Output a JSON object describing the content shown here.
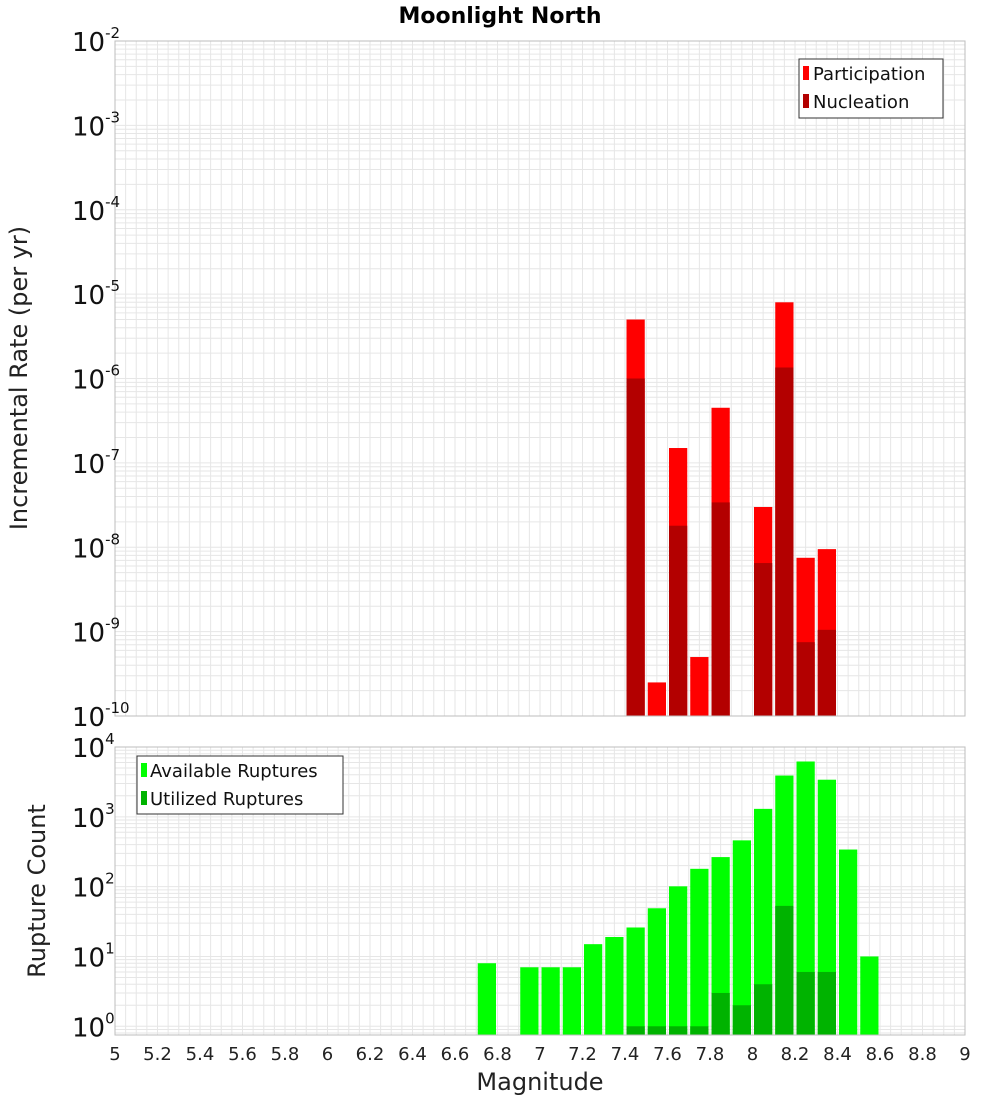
{
  "title": "Moonlight North",
  "xlabel": "Magnitude",
  "colors": {
    "participation": "#ff0000",
    "nucleation": "#b30000",
    "available": "#00ff00",
    "utilized": "#00b300",
    "grid": "#e6e6e6",
    "frame": "#bdbdbd"
  },
  "chart_data": [
    {
      "type": "bar",
      "ylabel": "Incremental Rate (per yr)",
      "yscale": "log",
      "ylim": [
        1e-10,
        0.01
      ],
      "xlim": [
        5,
        9
      ],
      "legend": "top-right",
      "grid": true,
      "bin_width": 0.1,
      "series": [
        {
          "name": "Participation",
          "color": "#ff0000",
          "x": [
            7.45,
            7.55,
            7.65,
            7.75,
            7.85,
            8.05,
            8.15,
            8.25,
            8.35
          ],
          "values": [
            5e-06,
            2.5e-10,
            1.5e-07,
            5e-10,
            4.5e-07,
            3e-08,
            8e-06,
            7.5e-09,
            9.5e-09
          ]
        },
        {
          "name": "Nucleation",
          "color": "#b30000",
          "x": [
            7.45,
            7.65,
            7.85,
            8.05,
            8.15,
            8.25,
            8.35
          ],
          "values": [
            1e-06,
            1.8e-08,
            3.4e-08,
            6.5e-09,
            1.35e-06,
            7.5e-10,
            1.05e-09
          ]
        }
      ]
    },
    {
      "type": "bar",
      "ylabel": "Rupture Count",
      "yscale": "log",
      "ylim": [
        0.75,
        10000
      ],
      "xlim": [
        5,
        9
      ],
      "legend": "top-left",
      "grid": true,
      "bin_width": 0.1,
      "series": [
        {
          "name": "Available Ruptures",
          "color": "#00ff00",
          "x": [
            6.75,
            6.95,
            7.05,
            7.15,
            7.25,
            7.35,
            7.45,
            7.55,
            7.65,
            7.75,
            7.85,
            7.95,
            8.05,
            8.15,
            8.25,
            8.35,
            8.45,
            8.55
          ],
          "values": [
            8,
            7,
            7,
            7,
            15,
            19,
            26,
            49,
            101,
            180,
            265,
            460,
            1300,
            3900,
            6200,
            3400,
            340,
            10
          ]
        },
        {
          "name": "Utilized Ruptures",
          "color": "#00b300",
          "x": [
            7.45,
            7.55,
            7.65,
            7.75,
            7.85,
            7.95,
            8.05,
            8.15,
            8.25,
            8.35
          ],
          "values": [
            1,
            1,
            1,
            1,
            3,
            2,
            4,
            53,
            6,
            6
          ]
        }
      ]
    }
  ],
  "x_ticks": [
    "5",
    "5.2",
    "5.4",
    "5.6",
    "5.8",
    "6",
    "6.2",
    "6.4",
    "6.6",
    "6.8",
    "7",
    "7.2",
    "7.4",
    "7.6",
    "7.8",
    "8",
    "8.2",
    "8.4",
    "8.6",
    "8.8",
    "9"
  ],
  "top_y_ticks": [
    {
      "base": "10",
      "exp": "-2",
      "value": 0.01
    },
    {
      "base": "10",
      "exp": "-3",
      "value": 0.001
    },
    {
      "base": "10",
      "exp": "-4",
      "value": 0.0001
    },
    {
      "base": "10",
      "exp": "-5",
      "value": 1e-05
    },
    {
      "base": "10",
      "exp": "-6",
      "value": 1e-06
    },
    {
      "base": "10",
      "exp": "-7",
      "value": 1e-07
    },
    {
      "base": "10",
      "exp": "-8",
      "value": 1e-08
    },
    {
      "base": "10",
      "exp": "-9",
      "value": 1e-09
    },
    {
      "base": "10",
      "exp": "-10",
      "value": 1e-10
    }
  ],
  "bottom_y_ticks": [
    {
      "base": "10",
      "exp": "4",
      "value": 10000
    },
    {
      "base": "10",
      "exp": "3",
      "value": 1000
    },
    {
      "base": "10",
      "exp": "2",
      "value": 100
    },
    {
      "base": "10",
      "exp": "1",
      "value": 10
    },
    {
      "base": "10",
      "exp": "0",
      "value": 1
    }
  ]
}
